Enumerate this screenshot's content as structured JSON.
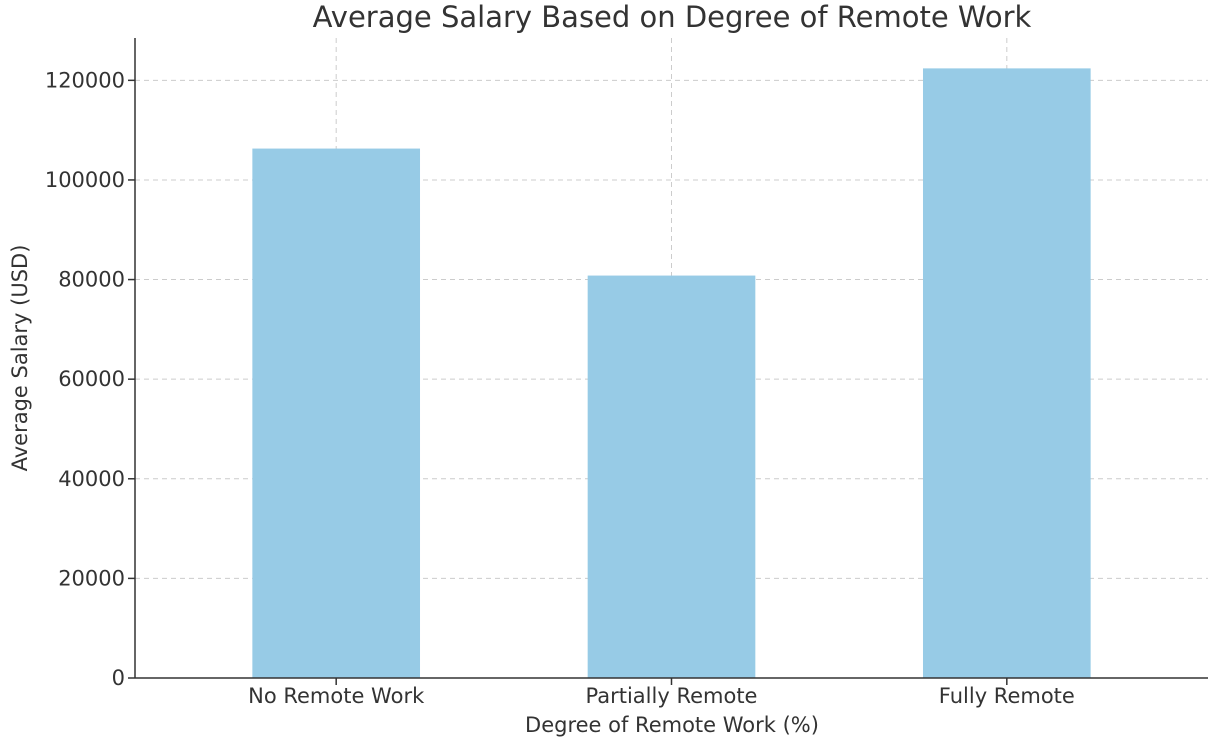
{
  "chart_data": {
    "type": "bar",
    "title": "Average Salary Based on Degree of Remote Work",
    "xlabel": "Degree of Remote Work (%)",
    "ylabel": "Average Salary (USD)",
    "categories": [
      "No Remote Work",
      "Partially Remote",
      "Fully Remote"
    ],
    "values": [
      106300,
      80800,
      122400
    ],
    "ylim": [
      0,
      128500
    ],
    "yticks": [
      0,
      20000,
      40000,
      60000,
      80000,
      100000,
      120000
    ],
    "ytick_labels": [
      "0",
      "20000",
      "40000",
      "60000",
      "80000",
      "100000",
      "120000"
    ],
    "grid": true,
    "bar_color": "#97cbe6"
  }
}
